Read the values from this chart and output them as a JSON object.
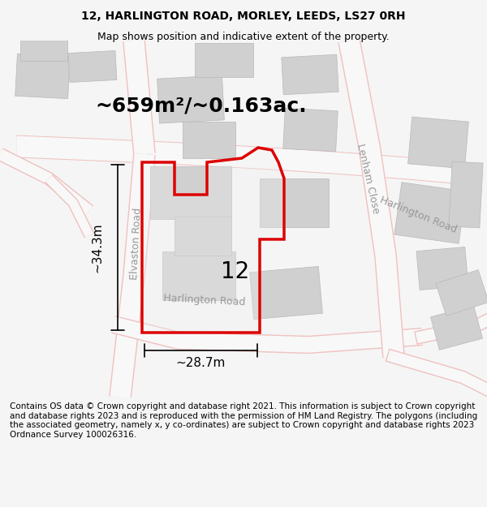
{
  "title_line1": "12, HARLINGTON ROAD, MORLEY, LEEDS, LS27 0RH",
  "title_line2": "Map shows position and indicative extent of the property.",
  "area_label": "~659m²/~0.163ac.",
  "number_label": "12",
  "dim_width": "~28.7m",
  "dim_height": "~34.3m",
  "road_label_elvaston": "Elvaston Road",
  "road_label_harlington": "Harlington Road",
  "road_label_lenham": "Lenham Close",
  "road_label_harlington2": "Harlington Road",
  "footer_text": "Contains OS data © Crown copyright and database right 2021. This information is subject to Crown copyright and database rights 2023 and is reproduced with the permission of HM Land Registry. The polygons (including the associated geometry, namely x, y co-ordinates) are subject to Crown copyright and database rights 2023 Ordnance Survey 100026316.",
  "bg_color": "#f5f5f5",
  "map_bg": "#ffffff",
  "property_fill": "#e8e8e8",
  "property_edge": "#dd0000",
  "road_color": "#f0c0c0",
  "building_fill": "#d8d8d8",
  "title_fontsize": 10,
  "subtitle_fontsize": 9,
  "area_fontsize": 18,
  "number_fontsize": 20,
  "dim_fontsize": 11,
  "road_fontsize": 9,
  "footer_fontsize": 7.5
}
